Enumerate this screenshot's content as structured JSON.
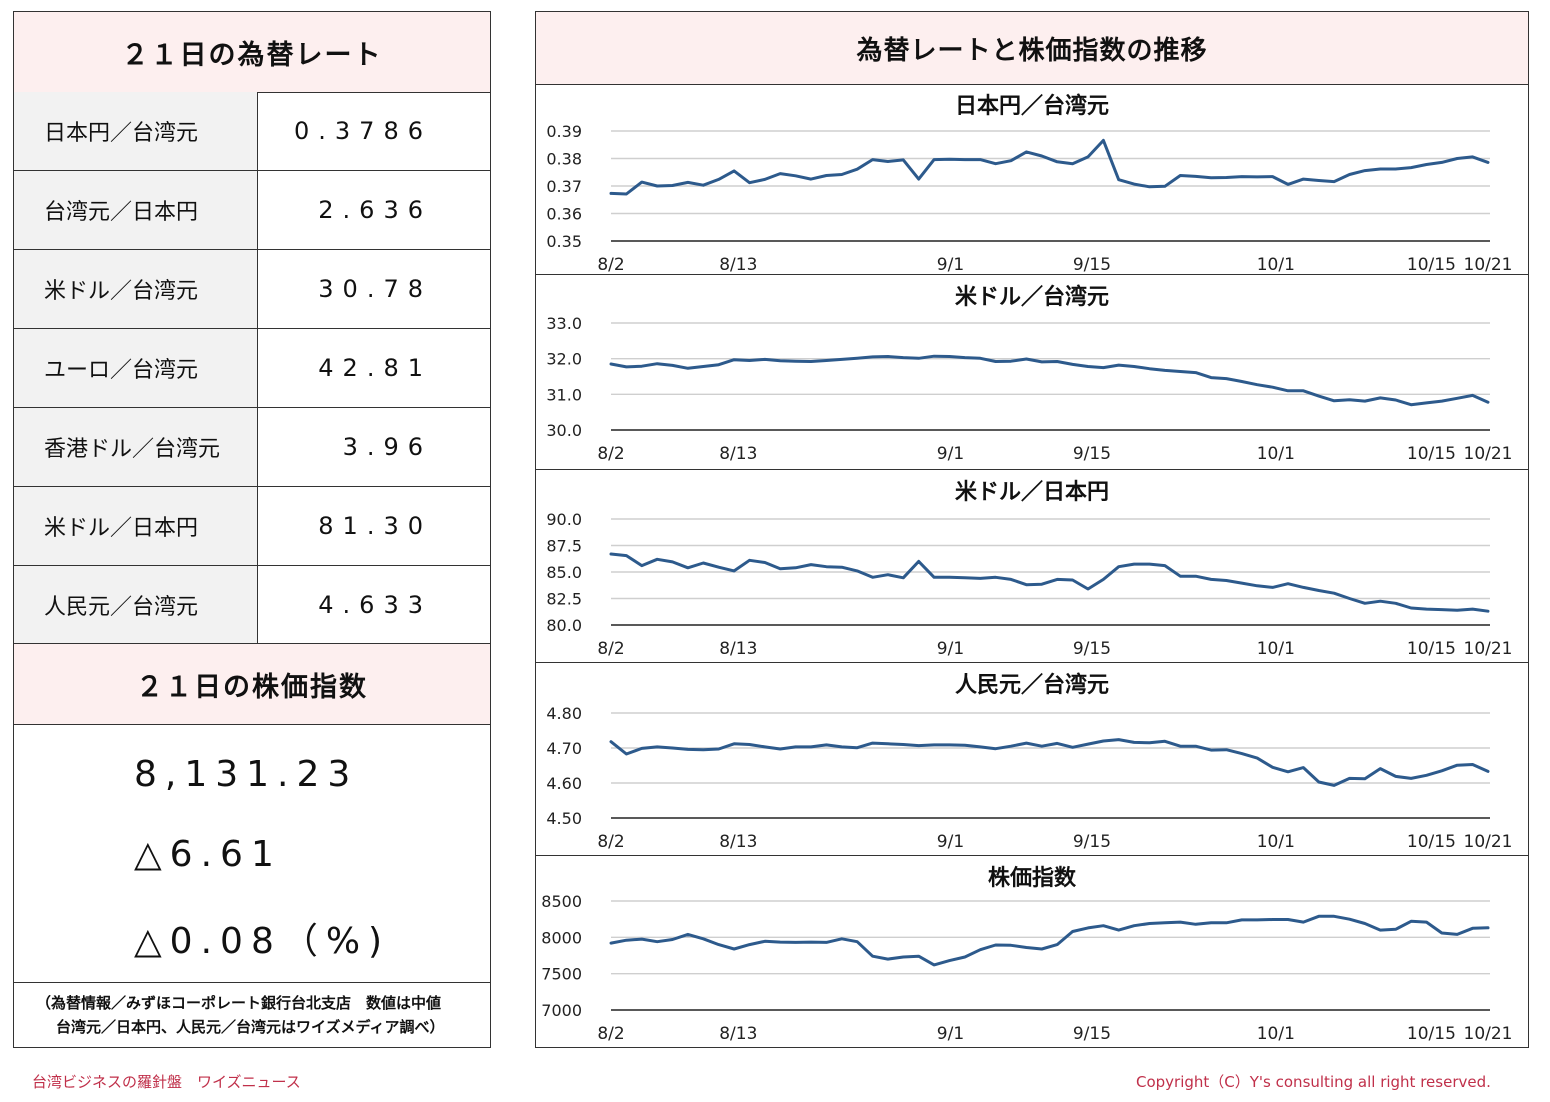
{
  "left": {
    "rate_title": "２１日の為替レート",
    "rates": [
      {
        "name": "日本円／台湾元",
        "value": "0.3786"
      },
      {
        "name": "台湾元／日本円",
        "value": "2.636"
      },
      {
        "name": "米ドル／台湾元",
        "value": "30.78"
      },
      {
        "name": "ユーロ／台湾元",
        "value": "42.81"
      },
      {
        "name": "香港ドル／台湾元",
        "value": "3.96"
      },
      {
        "name": "米ドル／日本円",
        "value": "81.30"
      },
      {
        "name": "人民元／台湾元",
        "value": "4.633"
      }
    ],
    "stock_title": "２１日の株価指数",
    "stock_value": "8,131.23",
    "stock_change": "△6.61",
    "stock_pct": "△0.08（%)",
    "source_line1": "（為替情報／みずほコーポレート銀行台北支店　数値は中値",
    "source_line2": "台湾元／日本円、人民元／台湾元はワイズメディア調べ）"
  },
  "right": {
    "title": "為替レートと株価指数の推移"
  },
  "footer": {
    "left": "台湾ビジネスの羅針盤　ワイズニュース",
    "right": "Copyright（C）Y's consulting all right reserved."
  },
  "colors": {
    "line": "#2d5a8c",
    "header_bg": "#fdefef",
    "label_bg": "#f2f2f2",
    "footer_text": "#c0304a"
  },
  "chart_data": [
    {
      "type": "line",
      "title": "日本円／台湾元",
      "x_ticks": [
        "8/2",
        "8/13",
        "9/1",
        "9/15",
        "10/1",
        "10/15",
        "10/21"
      ],
      "x_tick_index": [
        0,
        9,
        24,
        34,
        47,
        58,
        62
      ],
      "y_ticks": [
        "0.39",
        "0.38",
        "0.37",
        "0.36",
        "0.35"
      ],
      "ylim": [
        0.35,
        0.39
      ],
      "grid": true,
      "values": [
        0.3673,
        0.3671,
        0.3714,
        0.37,
        0.3702,
        0.3713,
        0.3703,
        0.3724,
        0.3755,
        0.3712,
        0.3724,
        0.3745,
        0.3737,
        0.3725,
        0.3738,
        0.3742,
        0.3761,
        0.3796,
        0.3789,
        0.3795,
        0.3725,
        0.3796,
        0.3797,
        0.3796,
        0.3796,
        0.3781,
        0.3792,
        0.3824,
        0.3809,
        0.3788,
        0.3781,
        0.3806,
        0.3866,
        0.3723,
        0.3707,
        0.3697,
        0.3699,
        0.3738,
        0.3735,
        0.373,
        0.3731,
        0.3734,
        0.3733,
        0.3734,
        0.3706,
        0.3725,
        0.372,
        0.3716,
        0.3742,
        0.3756,
        0.3762,
        0.3762,
        0.3767,
        0.3778,
        0.3786,
        0.38,
        0.3806,
        0.3786
      ]
    },
    {
      "type": "line",
      "title": "米ドル／台湾元",
      "x_ticks": [
        "8/2",
        "8/13",
        "9/1",
        "9/15",
        "10/1",
        "10/15",
        "10/21"
      ],
      "x_tick_index": [
        0,
        9,
        24,
        34,
        47,
        58,
        62
      ],
      "y_ticks": [
        "33.0",
        "32.0",
        "31.0",
        "30.0"
      ],
      "ylim": [
        30.0,
        33.0
      ],
      "grid": true,
      "values": [
        31.85,
        31.77,
        31.79,
        31.86,
        31.81,
        31.73,
        31.78,
        31.83,
        31.97,
        31.95,
        31.98,
        31.94,
        31.93,
        31.92,
        31.95,
        31.98,
        32.01,
        32.05,
        32.06,
        32.03,
        32.01,
        32.07,
        32.06,
        32.03,
        32.01,
        31.92,
        31.93,
        31.99,
        31.91,
        31.92,
        31.84,
        31.78,
        31.75,
        31.82,
        31.78,
        31.72,
        31.67,
        31.64,
        31.61,
        31.47,
        31.44,
        31.36,
        31.27,
        31.2,
        31.1,
        31.1,
        30.95,
        30.82,
        30.85,
        30.81,
        30.9,
        30.84,
        30.71,
        30.76,
        30.81,
        30.89,
        30.97,
        30.78
      ]
    },
    {
      "type": "line",
      "title": "米ドル／日本円",
      "x_ticks": [
        "8/2",
        "8/13",
        "9/1",
        "9/15",
        "10/1",
        "10/15",
        "10/21"
      ],
      "x_tick_index": [
        0,
        9,
        24,
        34,
        47,
        58,
        62
      ],
      "y_ticks": [
        "90.0",
        "87.5",
        "85.0",
        "82.5",
        "80.0"
      ],
      "ylim": [
        80.0,
        90.0
      ],
      "grid": true,
      "values": [
        86.7,
        86.55,
        85.6,
        86.2,
        85.95,
        85.4,
        85.85,
        85.45,
        85.1,
        86.1,
        85.9,
        85.3,
        85.4,
        85.7,
        85.5,
        85.45,
        85.1,
        84.5,
        84.75,
        84.45,
        86.0,
        84.5,
        84.5,
        84.45,
        84.4,
        84.5,
        84.3,
        83.8,
        83.85,
        84.3,
        84.25,
        83.4,
        84.3,
        85.5,
        85.75,
        85.75,
        85.6,
        84.6,
        84.6,
        84.3,
        84.2,
        83.95,
        83.7,
        83.55,
        83.9,
        83.55,
        83.25,
        83.0,
        82.5,
        82.05,
        82.25,
        82.05,
        81.6,
        81.5,
        81.45,
        81.4,
        81.5,
        81.3
      ]
    },
    {
      "type": "line",
      "title": "人民元／台湾元",
      "x_ticks": [
        "8/2",
        "8/13",
        "9/1",
        "9/15",
        "10/1",
        "10/15",
        "10/21"
      ],
      "x_tick_index": [
        0,
        9,
        24,
        34,
        47,
        58,
        62
      ],
      "y_ticks": [
        "4.80",
        "4.70",
        "4.60",
        "4.50"
      ],
      "ylim": [
        4.5,
        4.8
      ],
      "grid": true,
      "values": [
        4.718,
        4.683,
        4.699,
        4.703,
        4.7,
        4.696,
        4.695,
        4.697,
        4.712,
        4.71,
        4.703,
        4.697,
        4.703,
        4.703,
        4.709,
        4.703,
        4.701,
        4.714,
        4.712,
        4.71,
        4.707,
        4.709,
        4.709,
        4.708,
        4.703,
        4.698,
        4.705,
        4.714,
        4.705,
        4.713,
        4.702,
        4.711,
        4.72,
        4.724,
        4.716,
        4.715,
        4.719,
        4.705,
        4.705,
        4.694,
        4.695,
        4.684,
        4.671,
        4.645,
        4.632,
        4.644,
        4.603,
        4.593,
        4.613,
        4.612,
        4.641,
        4.619,
        4.613,
        4.622,
        4.635,
        4.651,
        4.653,
        4.633
      ]
    },
    {
      "type": "line",
      "title": "株価指数",
      "x_ticks": [
        "8/2",
        "8/13",
        "9/1",
        "9/15",
        "10/1",
        "10/15",
        "10/21"
      ],
      "x_tick_index": [
        0,
        9,
        24,
        34,
        47,
        58,
        62
      ],
      "y_ticks": [
        "8500",
        "8000",
        "7500",
        "7000"
      ],
      "ylim": [
        7000,
        8500
      ],
      "grid": true,
      "values": [
        7920,
        7960,
        7975,
        7940,
        7970,
        8040,
        7980,
        7900,
        7840,
        7900,
        7945,
        7935,
        7930,
        7935,
        7930,
        7980,
        7940,
        7740,
        7700,
        7730,
        7740,
        7620,
        7680,
        7730,
        7830,
        7895,
        7890,
        7860,
        7840,
        7900,
        8080,
        8130,
        8160,
        8100,
        8160,
        8190,
        8200,
        8210,
        8180,
        8200,
        8200,
        8240,
        8240,
        8245,
        8245,
        8210,
        8290,
        8290,
        8250,
        8190,
        8100,
        8110,
        8220,
        8210,
        8060,
        8040,
        8125,
        8131
      ]
    }
  ]
}
